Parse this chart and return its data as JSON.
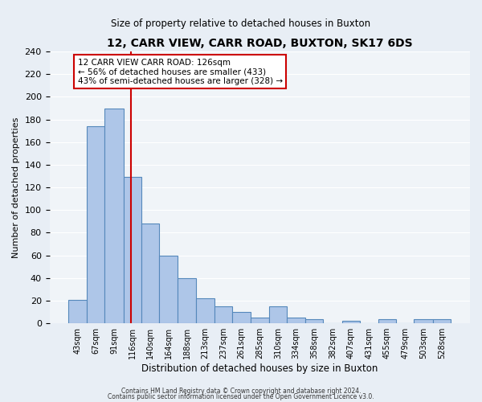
{
  "title": "12, CARR VIEW, CARR ROAD, BUXTON, SK17 6DS",
  "subtitle": "Size of property relative to detached houses in Buxton",
  "xlabel": "Distribution of detached houses by size in Buxton",
  "ylabel": "Number of detached properties",
  "bin_labels": [
    "43sqm",
    "67sqm",
    "91sqm",
    "116sqm",
    "140sqm",
    "164sqm",
    "188sqm",
    "213sqm",
    "237sqm",
    "261sqm",
    "285sqm",
    "310sqm",
    "334sqm",
    "358sqm",
    "382sqm",
    "407sqm",
    "431sqm",
    "455sqm",
    "479sqm",
    "503sqm",
    "528sqm"
  ],
  "bar_values": [
    21,
    174,
    190,
    129,
    88,
    60,
    40,
    22,
    15,
    10,
    5,
    15,
    5,
    4,
    0,
    2,
    0,
    4,
    0,
    4,
    4
  ],
  "bar_color": "#aec6e8",
  "bar_edge_color": "#5588bb",
  "ylim": [
    0,
    240
  ],
  "yticks": [
    0,
    20,
    40,
    60,
    80,
    100,
    120,
    140,
    160,
    180,
    200,
    220,
    240
  ],
  "vline_x": 126,
  "vline_color": "#cc0000",
  "annotation_line1": "12 CARR VIEW CARR ROAD: 126sqm",
  "annotation_line2": "← 56% of detached houses are smaller (433)",
  "annotation_line3": "43% of semi-detached houses are larger (328) →",
  "annotation_box_color": "#ffffff",
  "annotation_box_edge": "#cc0000",
  "footer1": "Contains HM Land Registry data © Crown copyright and database right 2024.",
  "footer2": "Contains public sector information licensed under the Open Government Licence v3.0.",
  "bin_edges": [
    43,
    67,
    91,
    116,
    140,
    164,
    188,
    213,
    237,
    261,
    285,
    310,
    334,
    358,
    382,
    407,
    431,
    455,
    479,
    503,
    528,
    552
  ],
  "bg_color": "#e8eef5",
  "plot_bg_color": "#f0f4f8"
}
